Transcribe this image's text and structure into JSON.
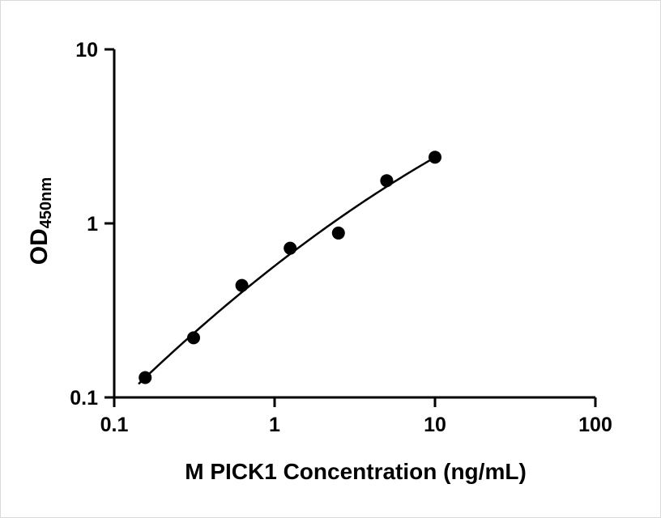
{
  "chart_data": {
    "type": "scatter",
    "title": "",
    "xlabel": "M PICK1 Concentration (ng/mL)",
    "ylabel_main": "OD",
    "ylabel_sub": "450nm",
    "x_scale": "log",
    "y_scale": "log",
    "xlim": [
      0.1,
      100
    ],
    "ylim": [
      0.1,
      10
    ],
    "x_ticks": [
      0.1,
      1,
      10,
      100
    ],
    "x_tick_labels": [
      "0.1",
      "1",
      "10",
      "100"
    ],
    "y_ticks": [
      0.1,
      1,
      10
    ],
    "y_tick_labels": [
      "0.1",
      "1",
      "10"
    ],
    "grid": false,
    "legend": false,
    "marker_color": "#000000",
    "line_color": "#000000",
    "background": "#ffffff",
    "fit_line": true,
    "fit_range": [
      0.143,
      10
    ],
    "points": [
      {
        "x": 0.156,
        "y": 0.13
      },
      {
        "x": 0.3125,
        "y": 0.22
      },
      {
        "x": 0.625,
        "y": 0.44
      },
      {
        "x": 1.25,
        "y": 0.72
      },
      {
        "x": 2.5,
        "y": 0.88
      },
      {
        "x": 5,
        "y": 1.76
      },
      {
        "x": 10,
        "y": 2.4
      }
    ]
  }
}
